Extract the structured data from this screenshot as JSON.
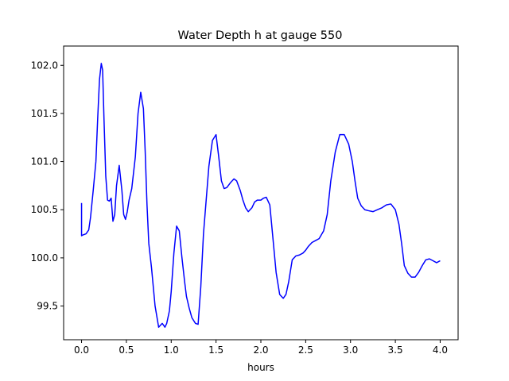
{
  "chart_data": {
    "type": "line",
    "title": "Water Depth h at gauge 550",
    "xlabel": "hours",
    "ylabel": "",
    "xlim": [
      -0.2,
      4.2
    ],
    "ylim": [
      99.15,
      102.2
    ],
    "xticks": [
      0.0,
      0.5,
      1.0,
      1.5,
      2.0,
      2.5,
      3.0,
      3.5,
      4.0
    ],
    "xtick_labels": [
      "0.0",
      "0.5",
      "1.0",
      "1.5",
      "2.0",
      "2.5",
      "3.0",
      "3.5",
      "4.0"
    ],
    "yticks": [
      99.5,
      100.0,
      100.5,
      101.0,
      101.5,
      102.0
    ],
    "ytick_labels": [
      "99.5",
      "100.0",
      "100.5",
      "101.0",
      "101.5",
      "102.0"
    ],
    "grid": false,
    "colors": {
      "series": "#0000ff"
    },
    "series": [
      {
        "name": "",
        "x": [
          0.0,
          0.0,
          0.02,
          0.05,
          0.08,
          0.1,
          0.13,
          0.16,
          0.18,
          0.2,
          0.22,
          0.235,
          0.25,
          0.27,
          0.29,
          0.31,
          0.33,
          0.35,
          0.37,
          0.39,
          0.42,
          0.45,
          0.47,
          0.49,
          0.51,
          0.53,
          0.56,
          0.6,
          0.63,
          0.66,
          0.69,
          0.71,
          0.73,
          0.75,
          0.78,
          0.82,
          0.86,
          0.88,
          0.9,
          0.93,
          0.95,
          0.98,
          1.0,
          1.03,
          1.06,
          1.09,
          1.12,
          1.15,
          1.17,
          1.2,
          1.23,
          1.27,
          1.3,
          1.33,
          1.36,
          1.39,
          1.42,
          1.46,
          1.5,
          1.53,
          1.56,
          1.59,
          1.62,
          1.66,
          1.7,
          1.73,
          1.77,
          1.8,
          1.83,
          1.86,
          1.9,
          1.93,
          1.96,
          2.0,
          2.03,
          2.06,
          2.1,
          2.13,
          2.17,
          2.21,
          2.25,
          2.28,
          2.31,
          2.35,
          2.39,
          2.43,
          2.47,
          2.5,
          2.53,
          2.57,
          2.61,
          2.65,
          2.7,
          2.74,
          2.78,
          2.83,
          2.88,
          2.93,
          2.98,
          3.02,
          3.05,
          3.08,
          3.12,
          3.16,
          3.2,
          3.25,
          3.3,
          3.35,
          3.4,
          3.45,
          3.5,
          3.54,
          3.57,
          3.6,
          3.64,
          3.68,
          3.72,
          3.76,
          3.8,
          3.84,
          3.88,
          3.92,
          3.96,
          4.0
        ],
        "y": [
          100.57,
          100.23,
          100.24,
          100.25,
          100.29,
          100.42,
          100.7,
          101.0,
          101.45,
          101.85,
          102.02,
          101.95,
          101.45,
          100.85,
          100.6,
          100.59,
          100.62,
          100.38,
          100.45,
          100.75,
          100.96,
          100.7,
          100.45,
          100.4,
          100.48,
          100.6,
          100.72,
          101.05,
          101.5,
          101.72,
          101.55,
          101.1,
          100.55,
          100.15,
          99.9,
          99.5,
          99.28,
          99.3,
          99.32,
          99.28,
          99.32,
          99.45,
          99.65,
          100.05,
          100.33,
          100.28,
          100.0,
          99.75,
          99.6,
          99.48,
          99.38,
          99.32,
          99.31,
          99.7,
          100.25,
          100.6,
          100.95,
          101.22,
          101.28,
          101.05,
          100.8,
          100.72,
          100.73,
          100.78,
          100.82,
          100.8,
          100.7,
          100.6,
          100.52,
          100.48,
          100.52,
          100.58,
          100.6,
          100.6,
          100.62,
          100.63,
          100.55,
          100.25,
          99.85,
          99.62,
          99.58,
          99.62,
          99.75,
          99.98,
          100.02,
          100.03,
          100.05,
          100.08,
          100.12,
          100.16,
          100.18,
          100.2,
          100.28,
          100.45,
          100.8,
          101.1,
          101.28,
          101.28,
          101.18,
          101.0,
          100.8,
          100.62,
          100.54,
          100.5,
          100.49,
          100.48,
          100.5,
          100.52,
          100.55,
          100.56,
          100.5,
          100.35,
          100.15,
          99.92,
          99.84,
          99.8,
          99.8,
          99.85,
          99.92,
          99.98,
          99.99,
          99.97,
          99.95,
          99.97
        ]
      }
    ]
  }
}
